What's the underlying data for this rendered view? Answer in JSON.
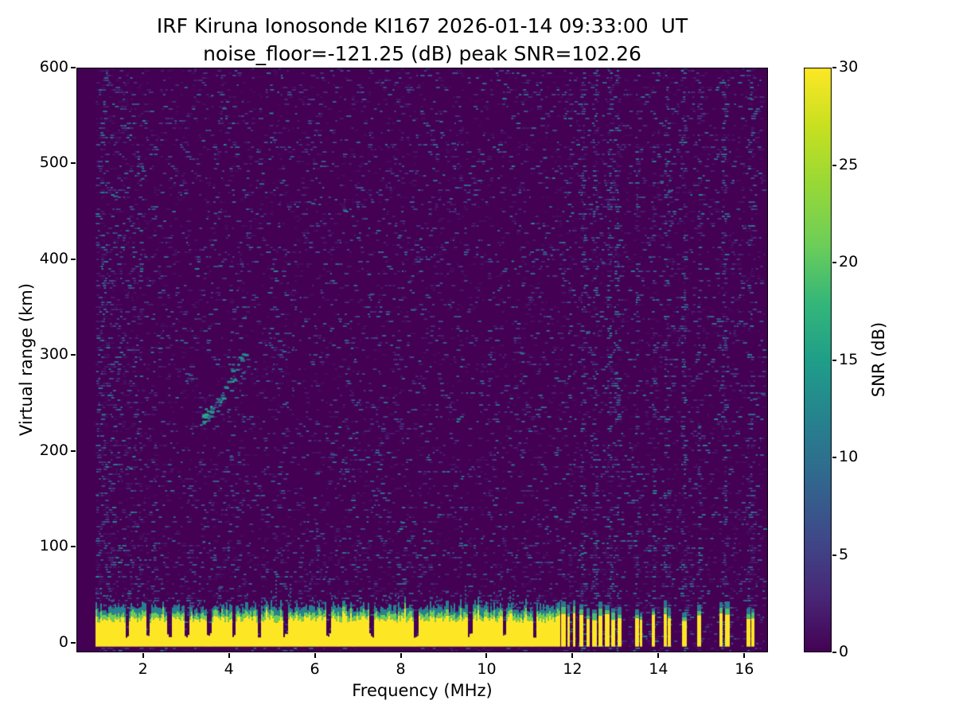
{
  "chart_data": {
    "type": "heatmap",
    "title": "IRF Kiruna Ionosonde KI167 2026-01-14 09:33:00  UT",
    "subtitle": "noise_floor=-121.25 (dB) peak SNR=102.26",
    "station": "KI167",
    "timestamp_ut": "2026-01-14 09:33:00",
    "noise_floor_db": -121.25,
    "peak_snr_db": 102.26,
    "xlabel": "Frequency (MHz)",
    "ylabel": "Virtual range (km)",
    "colorbar_label": "SNR (dB)",
    "colormap": "viridis",
    "xlim": [
      0.45,
      16.55
    ],
    "ylim": [
      -10,
      600
    ],
    "clim": [
      0,
      30
    ],
    "xticks": [
      2,
      4,
      6,
      8,
      10,
      12,
      14,
      16
    ],
    "yticks": [
      0,
      100,
      200,
      300,
      400,
      500,
      600
    ],
    "colorbar_ticks": [
      0,
      5,
      10,
      15,
      20,
      25,
      30
    ],
    "data_freq_range_mhz": [
      0.9,
      16.42
    ],
    "background_color_hex": "#440154",
    "band_color_hex": "#fde725",
    "features": {
      "background_noise": "sparse speckle noise 1-10 dB over whole field, denser below 1.9 MHz",
      "ground_clutter_band": {
        "freq_mhz": [
          0.9,
          11.68
        ],
        "range_km": [
          -4,
          28
        ],
        "snr_db": 30,
        "cap": "green/teal transition up to ~45 km"
      },
      "band_notch_freqs_mhz": [
        1.62,
        2.1,
        2.6,
        3.0,
        3.52,
        4.1,
        4.7,
        5.3,
        6.3,
        7.3,
        8.35,
        9.6,
        10.4,
        11.1
      ],
      "band_stripes_mhz": [
        11.74,
        11.88,
        12.02,
        12.16,
        12.32,
        12.46,
        12.6,
        12.76,
        12.9,
        13.04,
        13.45,
        13.56,
        13.85,
        14.12,
        14.22,
        14.55,
        14.9,
        15.42,
        15.55,
        16.05,
        16.16
      ],
      "noise_column_freqs_mhz": [
        11.9,
        12.2,
        12.5,
        12.8,
        13.0,
        13.45,
        13.85,
        14.15,
        14.55,
        14.9,
        15.5,
        16.1
      ],
      "echo_trace": {
        "freq_mhz": [
          3.3,
          4.4
        ],
        "range_km": [
          233,
          300
        ],
        "snr_db": [
          8,
          18
        ]
      },
      "noisy_low_freq_below_mhz": 1.9
    }
  }
}
